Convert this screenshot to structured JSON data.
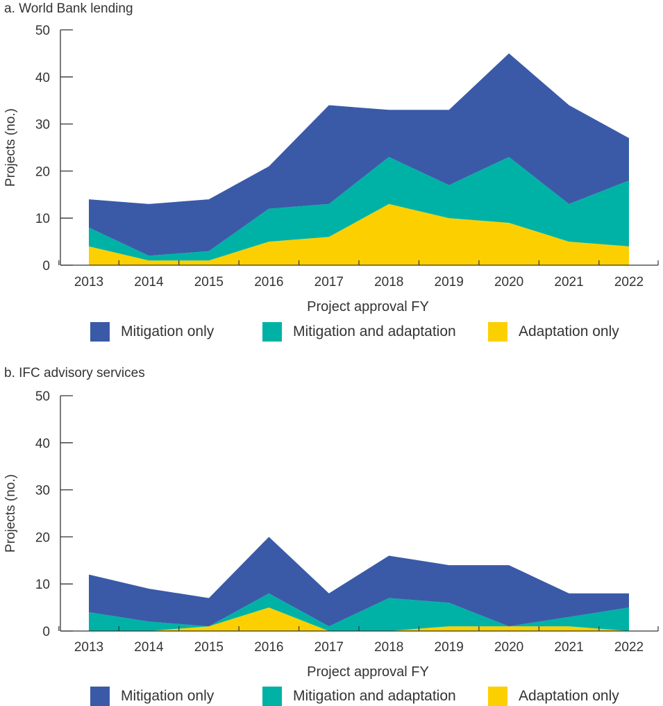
{
  "colors": {
    "mitigation_only": "#3a5aa8",
    "mitigation_and_adaptation": "#00b2a6",
    "adaptation_only": "#fcd000",
    "axis": "#333333"
  },
  "chart_data": [
    {
      "type": "area",
      "stacked": true,
      "title": "a. World Bank lending",
      "xlabel": "Project approval FY",
      "ylabel": "Projects (no.)",
      "ylim": [
        0,
        50
      ],
      "yticks": [
        0,
        10,
        20,
        30,
        40,
        50
      ],
      "categories": [
        "2013",
        "2014",
        "2015",
        "2016",
        "2017",
        "2018",
        "2019",
        "2020",
        "2021",
        "2022"
      ],
      "legend_position": "bottom",
      "series": [
        {
          "name": "Adaptation only",
          "color": "#fcd000",
          "values": [
            4,
            1,
            1,
            5,
            6,
            13,
            10,
            9,
            5,
            4
          ]
        },
        {
          "name": "Mitigation and adaptation",
          "color": "#00b2a6",
          "values": [
            4,
            1,
            2,
            7,
            7,
            10,
            7,
            14,
            8,
            14
          ]
        },
        {
          "name": "Mitigation only",
          "color": "#3a5aa8",
          "values": [
            6,
            11,
            11,
            9,
            21,
            10,
            16,
            22,
            21,
            9
          ]
        }
      ]
    },
    {
      "type": "area",
      "stacked": true,
      "title": "b. IFC advisory services",
      "xlabel": "Project approval FY",
      "ylabel": "Projects (no.)",
      "ylim": [
        0,
        50
      ],
      "yticks": [
        0,
        10,
        20,
        30,
        40,
        50
      ],
      "categories": [
        "2013",
        "2014",
        "2015",
        "2016",
        "2017",
        "2018",
        "2019",
        "2020",
        "2021",
        "2022"
      ],
      "legend_position": "bottom",
      "series": [
        {
          "name": "Adaptation only",
          "color": "#fcd000",
          "values": [
            0,
            0,
            1,
            5,
            0,
            0,
            1,
            1,
            1,
            0
          ]
        },
        {
          "name": "Mitigation and adaptation",
          "color": "#00b2a6",
          "values": [
            4,
            2,
            0,
            3,
            1,
            7,
            5,
            0,
            2,
            5
          ]
        },
        {
          "name": "Mitigation only",
          "color": "#3a5aa8",
          "values": [
            8,
            7,
            6,
            12,
            7,
            9,
            8,
            13,
            5,
            3
          ]
        }
      ]
    }
  ],
  "legend": [
    {
      "label": "Mitigation only",
      "color": "#3a5aa8"
    },
    {
      "label": "Mitigation and adaptation",
      "color": "#00b2a6"
    },
    {
      "label": "Adaptation only",
      "color": "#fcd000"
    }
  ]
}
